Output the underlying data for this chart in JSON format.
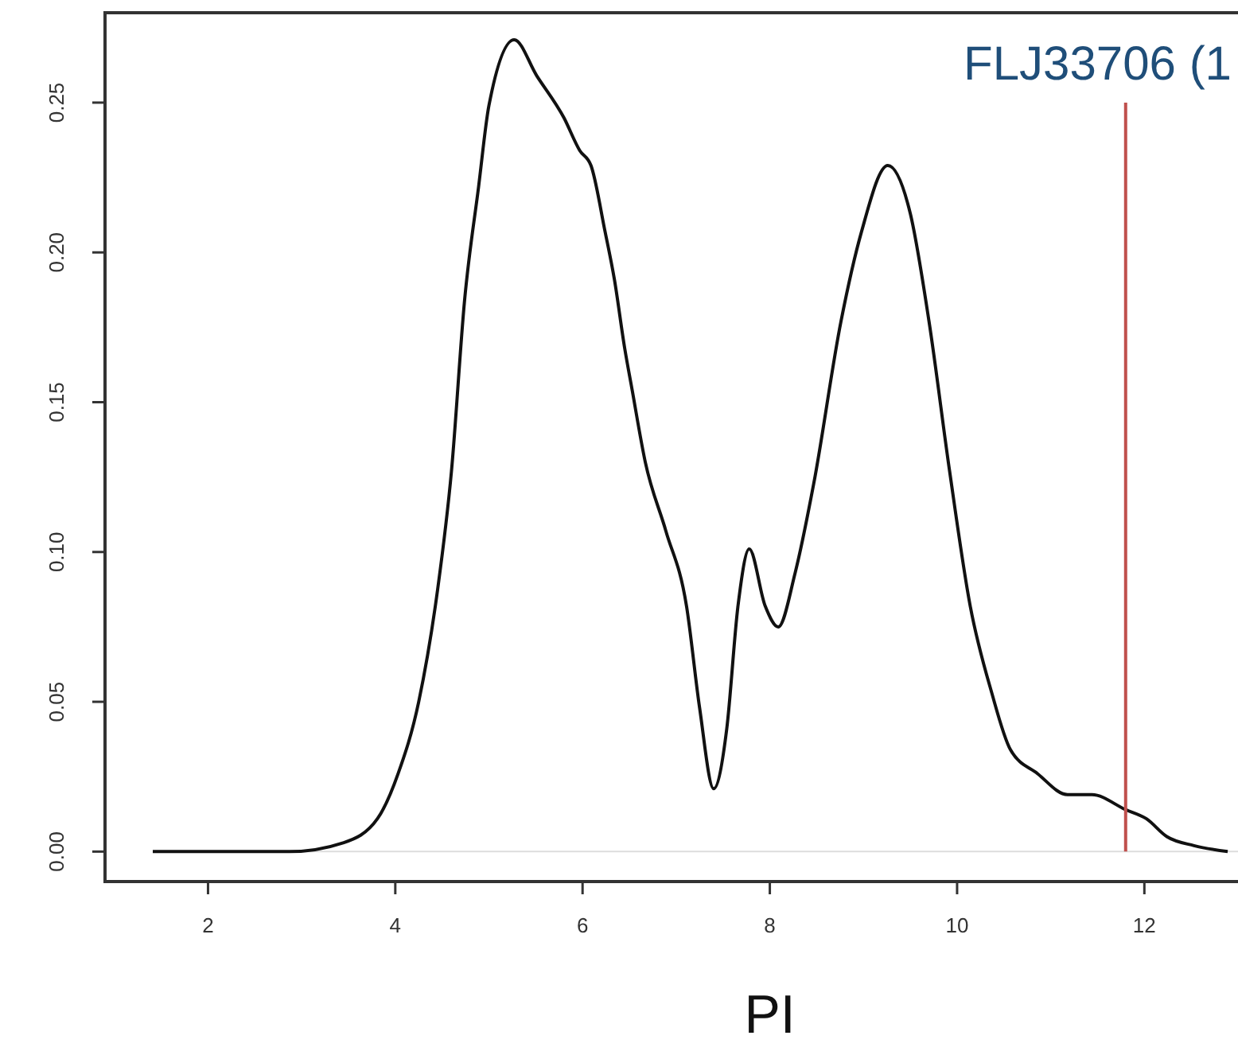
{
  "chart_data": {
    "type": "line",
    "xlabel": "PI",
    "x": [
      1.41,
      2.87,
      3.45,
      3.81,
      4.03,
      4.25,
      4.45,
      4.6,
      4.74,
      4.89,
      5.0,
      5.27,
      5.51,
      5.8,
      5.97,
      6.09,
      6.24,
      6.34,
      6.45,
      6.53,
      6.67,
      6.89,
      7.11,
      7.25,
      7.4,
      7.54,
      7.66,
      7.78,
      7.95,
      8.09,
      8.27,
      8.47,
      8.76,
      8.98,
      9.26,
      9.5,
      9.7,
      9.92,
      10.14,
      10.37,
      10.57,
      10.86,
      11.18,
      11.44,
      11.8,
      12.02,
      12.24,
      12.53,
      12.89
    ],
    "series": [
      {
        "color": "#111111",
        "values": [
          0,
          0,
          0.003,
          0.011,
          0.026,
          0.05,
          0.087,
          0.127,
          0.184,
          0.222,
          0.249,
          0.271,
          0.259,
          0.245,
          0.234,
          0.229,
          0.207,
          0.191,
          0.168,
          0.154,
          0.13,
          0.107,
          0.082,
          0.048,
          0.021,
          0.041,
          0.082,
          0.101,
          0.082,
          0.075,
          0.093,
          0.123,
          0.177,
          0.207,
          0.229,
          0.213,
          0.177,
          0.127,
          0.082,
          0.053,
          0.034,
          0.026,
          0.019,
          0.019,
          0.014,
          0.011,
          0.005,
          0.002,
          0
        ]
      }
    ],
    "xlim": [
      0.9,
      13
    ],
    "xticks": [
      2,
      4,
      6,
      8,
      10,
      12
    ],
    "ylim": [
      -0.01,
      0.28
    ],
    "yticks": [
      {
        "value": 0,
        "label": "0.00"
      },
      {
        "value": 0.05,
        "label": "0.05"
      },
      {
        "value": 0.1,
        "label": "0.10"
      },
      {
        "value": 0.15,
        "label": "0.15"
      },
      {
        "value": 0.2,
        "label": "0.20"
      },
      {
        "value": 0.25,
        "label": "0.25"
      }
    ],
    "ref_lines": [
      {
        "axis": "x",
        "value": 11.8,
        "label": "FLJ33706 (1",
        "color": "#c0504d"
      },
      {
        "axis": "y",
        "value": 0,
        "color": "#dddddd"
      }
    ]
  }
}
